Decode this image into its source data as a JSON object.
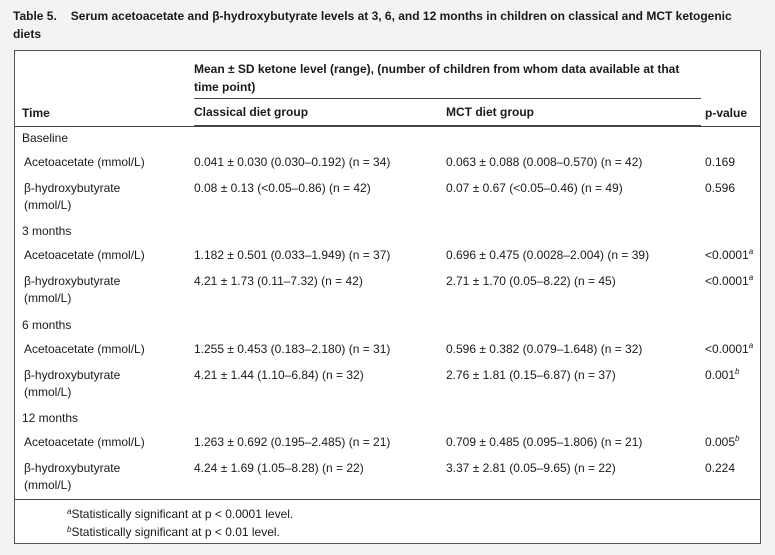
{
  "caption": {
    "label": "Table 5.",
    "title": "Serum acetoacetate and β-hydroxybutyrate levels at 3, 6, and 12 months in children on classical and MCT ketogenic diets"
  },
  "header": {
    "time": "Time",
    "span": "Mean ± SD ketone level (range), (number of children from whom data available at that time point)",
    "classical": "Classical diet group",
    "mct": "MCT diet group",
    "pvalue": "p-value"
  },
  "sections": [
    {
      "label": "Baseline",
      "rows": [
        {
          "measure": "Acetoacetate (mmol/L)",
          "classical": "0.041 ± 0.030 (0.030–0.192) (n = 34)",
          "mct": "0.063 ± 0.088 (0.008–0.570) (n = 42)",
          "p": "0.169",
          "sup": ""
        },
        {
          "measure": "β-hydroxybutyrate (mmol/L)",
          "classical": "0.08 ± 0.13 (<0.05–0.86) (n = 42)",
          "mct": "0.07 ± 0.67 (<0.05–0.46) (n = 49)",
          "p": "0.596",
          "sup": ""
        }
      ]
    },
    {
      "label": "3 months",
      "rows": [
        {
          "measure": "Acetoacetate (mmol/L)",
          "classical": "1.182 ± 0.501 (0.033–1.949) (n = 37)",
          "mct": "0.696 ± 0.475 (0.0028–2.004) (n = 39)",
          "p": "<0.0001",
          "sup": "a"
        },
        {
          "measure": "β-hydroxybutyrate (mmol/L)",
          "classical": "4.21 ± 1.73 (0.11–7.32) (n = 42)",
          "mct": "2.71 ± 1.70 (0.05–8.22) (n = 45)",
          "p": "<0.0001",
          "sup": "a"
        }
      ]
    },
    {
      "label": "6 months",
      "rows": [
        {
          "measure": "Acetoacetate (mmol/L)",
          "classical": "1.255 ± 0.453 (0.183–2.180) (n = 31)",
          "mct": "0.596 ± 0.382 (0.079–1.648) (n = 32)",
          "p": "<0.0001",
          "sup": "a"
        },
        {
          "measure": "β-hydroxybutyrate (mmol/L)",
          "classical": "4.21 ± 1.44 (1.10–6.84) (n = 32)",
          "mct": "2.76 ± 1.81 (0.15–6.87) (n = 37)",
          "p": "0.001",
          "sup": "b"
        }
      ]
    },
    {
      "label": "12 months",
      "rows": [
        {
          "measure": "Acetoacetate (mmol/L)",
          "classical": "1.263 ± 0.692 (0.195–2.485) (n = 21)",
          "mct": "0.709 ± 0.485 (0.095–1.806) (n = 21)",
          "p": "0.005",
          "sup": "b"
        },
        {
          "measure": "β-hydroxybutyrate (mmol/L)",
          "classical": "4.24 ± 1.69 (1.05–8.28) (n = 22)",
          "mct": "3.37 ± 2.81 (0.05–9.65) (n = 22)",
          "p": "0.224",
          "sup": ""
        }
      ]
    }
  ],
  "footnotes": [
    {
      "sup": "a",
      "text": "Statistically significant at p < 0.0001 level."
    },
    {
      "sup": "b",
      "text": "Statistically significant at p < 0.01 level."
    }
  ]
}
